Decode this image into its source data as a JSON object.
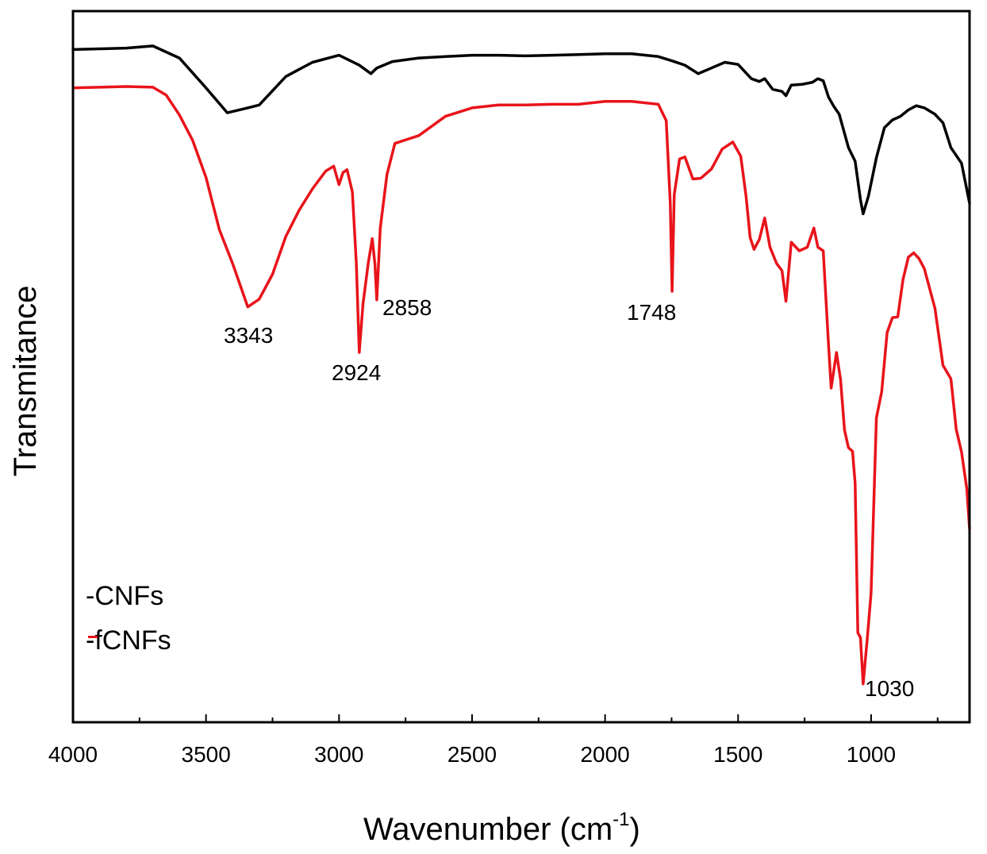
{
  "chart_data": {
    "type": "line",
    "title": "",
    "xlabel": "Wavenumber (cm",
    "xlabel_sup": "-1",
    "xlabel_close": ")",
    "ylabel": "Transmitance",
    "xlim": [
      4000,
      630
    ],
    "ylim": [
      0,
      100
    ],
    "xticks": [
      4000,
      3500,
      3000,
      2500,
      2000,
      1500,
      1000
    ],
    "xtick_labels": [
      "4000",
      "3500",
      "3000",
      "2500",
      "2000",
      "1500",
      "1000"
    ],
    "grid": false,
    "legend_position": "bottom-left",
    "series": [
      {
        "name": "CNFs",
        "legend_label": "-CNFs",
        "color": "#000000",
        "points": [
          [
            4000,
            94.6
          ],
          [
            3900,
            94.7
          ],
          [
            3800,
            94.8
          ],
          [
            3700,
            95.1
          ],
          [
            3600,
            93.4
          ],
          [
            3500,
            89.2
          ],
          [
            3420,
            85.7
          ],
          [
            3343,
            86.4
          ],
          [
            3300,
            86.8
          ],
          [
            3200,
            90.8
          ],
          [
            3100,
            92.8
          ],
          [
            3000,
            93.8
          ],
          [
            2924,
            92.4
          ],
          [
            2880,
            91.2
          ],
          [
            2858,
            92.0
          ],
          [
            2800,
            92.9
          ],
          [
            2700,
            93.4
          ],
          [
            2600,
            93.6
          ],
          [
            2500,
            93.8
          ],
          [
            2400,
            93.8
          ],
          [
            2300,
            93.7
          ],
          [
            2200,
            93.8
          ],
          [
            2100,
            93.9
          ],
          [
            2000,
            94.0
          ],
          [
            1900,
            94.0
          ],
          [
            1800,
            93.6
          ],
          [
            1748,
            93.0
          ],
          [
            1700,
            92.4
          ],
          [
            1650,
            91.2
          ],
          [
            1600,
            92.0
          ],
          [
            1550,
            92.8
          ],
          [
            1500,
            92.5
          ],
          [
            1450,
            90.5
          ],
          [
            1420,
            90.1
          ],
          [
            1400,
            90.5
          ],
          [
            1370,
            89.0
          ],
          [
            1335,
            88.7
          ],
          [
            1320,
            88.1
          ],
          [
            1300,
            89.6
          ],
          [
            1260,
            89.7
          ],
          [
            1220,
            90.0
          ],
          [
            1200,
            90.5
          ],
          [
            1180,
            90.2
          ],
          [
            1160,
            87.9
          ],
          [
            1140,
            86.6
          ],
          [
            1120,
            85.5
          ],
          [
            1105,
            83.5
          ],
          [
            1085,
            80.8
          ],
          [
            1060,
            78.9
          ],
          [
            1040,
            73.5
          ],
          [
            1030,
            71.5
          ],
          [
            1010,
            74.0
          ],
          [
            980,
            79.4
          ],
          [
            950,
            83.6
          ],
          [
            920,
            84.7
          ],
          [
            890,
            85.2
          ],
          [
            860,
            86.1
          ],
          [
            830,
            86.7
          ],
          [
            800,
            86.4
          ],
          [
            760,
            85.5
          ],
          [
            730,
            84.3
          ],
          [
            700,
            80.8
          ],
          [
            660,
            78.6
          ],
          [
            630,
            73.0
          ]
        ]
      },
      {
        "name": "fCNFs",
        "legend_label": "-fCNFs",
        "color": "#e8141b",
        "points": [
          [
            4000,
            89.2
          ],
          [
            3900,
            89.3
          ],
          [
            3800,
            89.4
          ],
          [
            3700,
            89.3
          ],
          [
            3650,
            88.2
          ],
          [
            3600,
            85.4
          ],
          [
            3550,
            81.8
          ],
          [
            3500,
            76.6
          ],
          [
            3450,
            69.3
          ],
          [
            3400,
            64.5
          ],
          [
            3343,
            58.4
          ],
          [
            3300,
            59.5
          ],
          [
            3250,
            63.0
          ],
          [
            3200,
            68.3
          ],
          [
            3150,
            72.0
          ],
          [
            3100,
            75.0
          ],
          [
            3050,
            77.5
          ],
          [
            3020,
            78.2
          ],
          [
            3000,
            75.6
          ],
          [
            2985,
            77.3
          ],
          [
            2970,
            77.7
          ],
          [
            2950,
            74.6
          ],
          [
            2935,
            64.6
          ],
          [
            2924,
            52.0
          ],
          [
            2910,
            58.8
          ],
          [
            2890,
            64.6
          ],
          [
            2875,
            68.0
          ],
          [
            2865,
            64.4
          ],
          [
            2858,
            59.4
          ],
          [
            2845,
            69.5
          ],
          [
            2820,
            77.0
          ],
          [
            2790,
            81.4
          ],
          [
            2700,
            82.5
          ],
          [
            2600,
            85.2
          ],
          [
            2500,
            86.4
          ],
          [
            2400,
            86.8
          ],
          [
            2300,
            86.8
          ],
          [
            2200,
            86.9
          ],
          [
            2100,
            86.9
          ],
          [
            2000,
            87.3
          ],
          [
            1900,
            87.3
          ],
          [
            1800,
            86.9
          ],
          [
            1770,
            84.6
          ],
          [
            1755,
            73.0
          ],
          [
            1748,
            60.6
          ],
          [
            1740,
            74.2
          ],
          [
            1720,
            79.2
          ],
          [
            1700,
            79.5
          ],
          [
            1670,
            76.4
          ],
          [
            1640,
            76.5
          ],
          [
            1600,
            77.8
          ],
          [
            1560,
            80.6
          ],
          [
            1520,
            81.6
          ],
          [
            1490,
            79.6
          ],
          [
            1470,
            74.0
          ],
          [
            1455,
            68.2
          ],
          [
            1440,
            66.5
          ],
          [
            1420,
            67.9
          ],
          [
            1400,
            70.9
          ],
          [
            1380,
            66.8
          ],
          [
            1355,
            64.5
          ],
          [
            1335,
            63.5
          ],
          [
            1320,
            59.2
          ],
          [
            1300,
            67.5
          ],
          [
            1270,
            66.3
          ],
          [
            1240,
            66.8
          ],
          [
            1215,
            69.5
          ],
          [
            1200,
            66.8
          ],
          [
            1180,
            66.3
          ],
          [
            1160,
            53.0
          ],
          [
            1150,
            47.0
          ],
          [
            1130,
            52.0
          ],
          [
            1115,
            48.2
          ],
          [
            1100,
            41.1
          ],
          [
            1085,
            38.6
          ],
          [
            1070,
            38.1
          ],
          [
            1060,
            33.6
          ],
          [
            1050,
            12.6
          ],
          [
            1040,
            11.9
          ],
          [
            1030,
            5.4
          ],
          [
            1015,
            11.5
          ],
          [
            1000,
            18.2
          ],
          [
            980,
            42.8
          ],
          [
            960,
            46.5
          ],
          [
            940,
            54.8
          ],
          [
            920,
            56.9
          ],
          [
            900,
            57.0
          ],
          [
            880,
            62.3
          ],
          [
            860,
            65.4
          ],
          [
            840,
            66.0
          ],
          [
            820,
            65.2
          ],
          [
            800,
            63.8
          ],
          [
            760,
            58.2
          ],
          [
            730,
            50.2
          ],
          [
            700,
            48.3
          ],
          [
            680,
            41.2
          ],
          [
            660,
            38.0
          ],
          [
            640,
            32.8
          ],
          [
            630,
            27.2
          ]
        ]
      }
    ],
    "annotations": [
      {
        "text": "3343"
      },
      {
        "text": "2924"
      },
      {
        "text": "2858"
      },
      {
        "text": "1748"
      },
      {
        "text": "1030"
      }
    ]
  }
}
